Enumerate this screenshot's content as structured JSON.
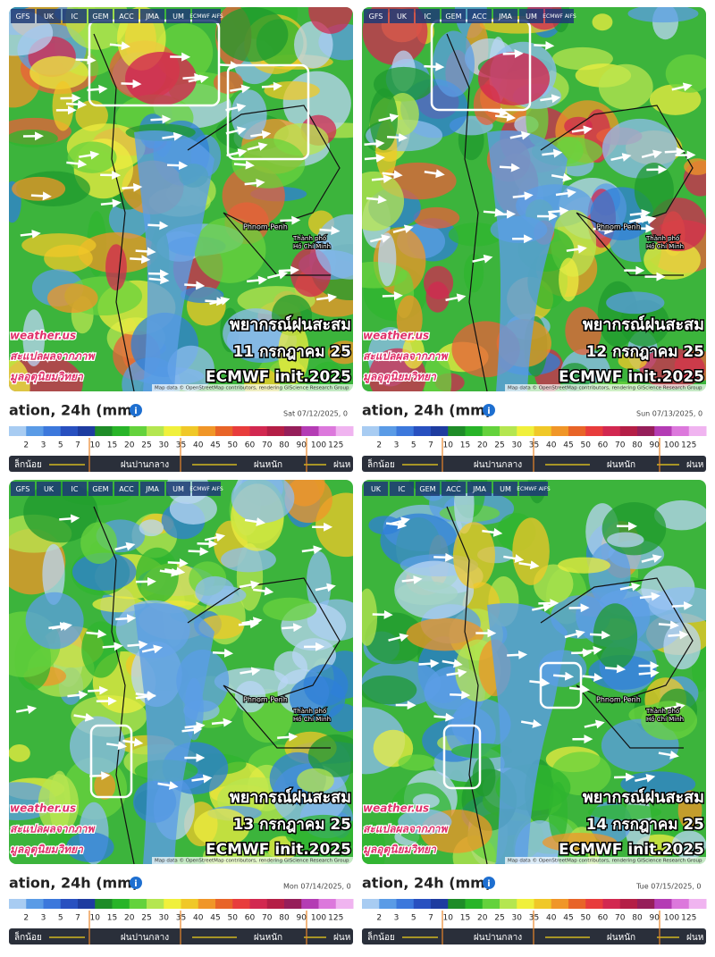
{
  "title": "ation, 24h (mm)",
  "scale": {
    "ticks": [
      "2",
      "3",
      "5",
      "7",
      "10",
      "15",
      "20",
      "25",
      "30",
      "35",
      "40",
      "45",
      "50",
      "60",
      "70",
      "80",
      "90",
      "100",
      "125"
    ],
    "bands": [
      "ล็กน้อย",
      "ฝนปานกลาง",
      "ฝนหนัก",
      "ฝนห"
    ]
  },
  "map_labels": {
    "city1": "Phnom Penh",
    "city2a": "Thành phố",
    "city2b": "Hồ Chí Minh",
    "attribution": "Map data © OpenStreetMap contributors, rendering GIScience Research Group"
  },
  "panels": [
    {
      "tabs": [
        "GFS",
        "UK",
        "IC",
        "GEM",
        "ACC",
        "JMA",
        "UM",
        "ECMWF AIFS"
      ],
      "heading": "พยากรณ์ฝนสะสม",
      "date_th": "11 กรกฎาคม 25",
      "init": "ECMWF init.2025",
      "watermark": [
        "weather.us",
        "สะแปลผลจากภาพ",
        "มูลอุตุนิยมวิทยา"
      ],
      "timestamp": "Sat 07/12/2025, 0"
    },
    {
      "tabs": [
        "GFS",
        "UK",
        "IC",
        "GEM",
        "ACC",
        "JMA",
        "UM",
        "ECMWF AIFS"
      ],
      "heading": "พยากรณ์ฝนสะสม",
      "date_th": "12 กรกฎาคม 25",
      "init": "ECMWF init.2025",
      "watermark": [
        "weather.us",
        "สะแปลผลจากภาพ",
        "มูลอุตุนิยมวิทยา"
      ],
      "timestamp": "Sun 07/13/2025, 0"
    },
    {
      "tabs": [
        "GFS",
        "UK",
        "IC",
        "GEM",
        "ACC",
        "JMA",
        "UM",
        "ECMWF AIFS"
      ],
      "heading": "พยากรณ์ฝนสะสม",
      "date_th": "13 กรกฎาคม 25",
      "init": "ECMWF init.2025",
      "watermark": [
        "weather.us",
        "สะแปลผลจากภาพ",
        "มูลอุตุนิยมวิทยา"
      ],
      "timestamp": "Mon 07/14/2025, 0"
    },
    {
      "tabs": [
        "UK",
        "IC",
        "GEM",
        "ACC",
        "JMA",
        "UM",
        "ECMWF AIFS"
      ],
      "heading": "พยากรณ์ฝนสะสม",
      "date_th": "14 กรกฎาคม 25",
      "init": "ECMWF init.2025",
      "watermark": [
        "weather.us",
        "สะแปลผลจากภาพ",
        "มูลอุตุนิยมวิทยา"
      ],
      "timestamp": "Tue 07/15/2025, 0"
    }
  ]
}
